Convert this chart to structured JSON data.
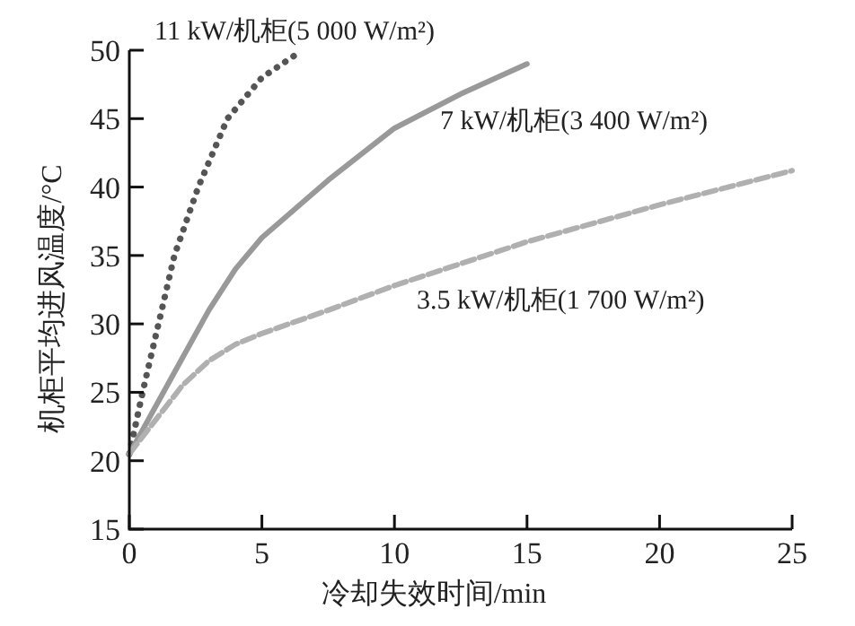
{
  "chart_data": {
    "type": "line",
    "xlabel": "冷却失效时间/min",
    "ylabel": "机柜平均进风温度/°C",
    "xlim": [
      0,
      25
    ],
    "xticks": [
      0,
      5,
      10,
      15,
      20,
      25
    ],
    "ylim": [
      15,
      50
    ],
    "yticks": [
      15,
      20,
      25,
      30,
      35,
      40,
      45,
      50
    ],
    "grid": false,
    "series": [
      {
        "name": "11 kW/机柜(5 000 W/m²)",
        "color": "#555555",
        "line_style": "dotted",
        "x": [
          0,
          0.5,
          1.1,
          1.7,
          2.6,
          3.7,
          5,
          6.3
        ],
        "values": [
          20.5,
          25,
          30,
          35,
          40,
          45,
          48,
          49.7
        ]
      },
      {
        "name": "7 kW/机柜(3 400 W/m²)",
        "color": "#999999",
        "line_style": "solid",
        "x": [
          0,
          1,
          2,
          3,
          4,
          5,
          7.5,
          10,
          12.5,
          15
        ],
        "values": [
          20.5,
          24,
          27.5,
          31,
          34,
          36.3,
          40.5,
          44.3,
          46.8,
          49
        ]
      },
      {
        "name": "3.5 kW/机柜(1 700 W/m²)",
        "color": "#b0b0b0",
        "line_style": "dashed",
        "x": [
          0,
          1,
          2,
          3,
          4,
          5,
          7.5,
          10,
          15,
          20,
          25
        ],
        "values": [
          20.5,
          23,
          25.5,
          27.3,
          28.5,
          29.3,
          31,
          32.8,
          36,
          38.7,
          41.2
        ]
      }
    ]
  }
}
